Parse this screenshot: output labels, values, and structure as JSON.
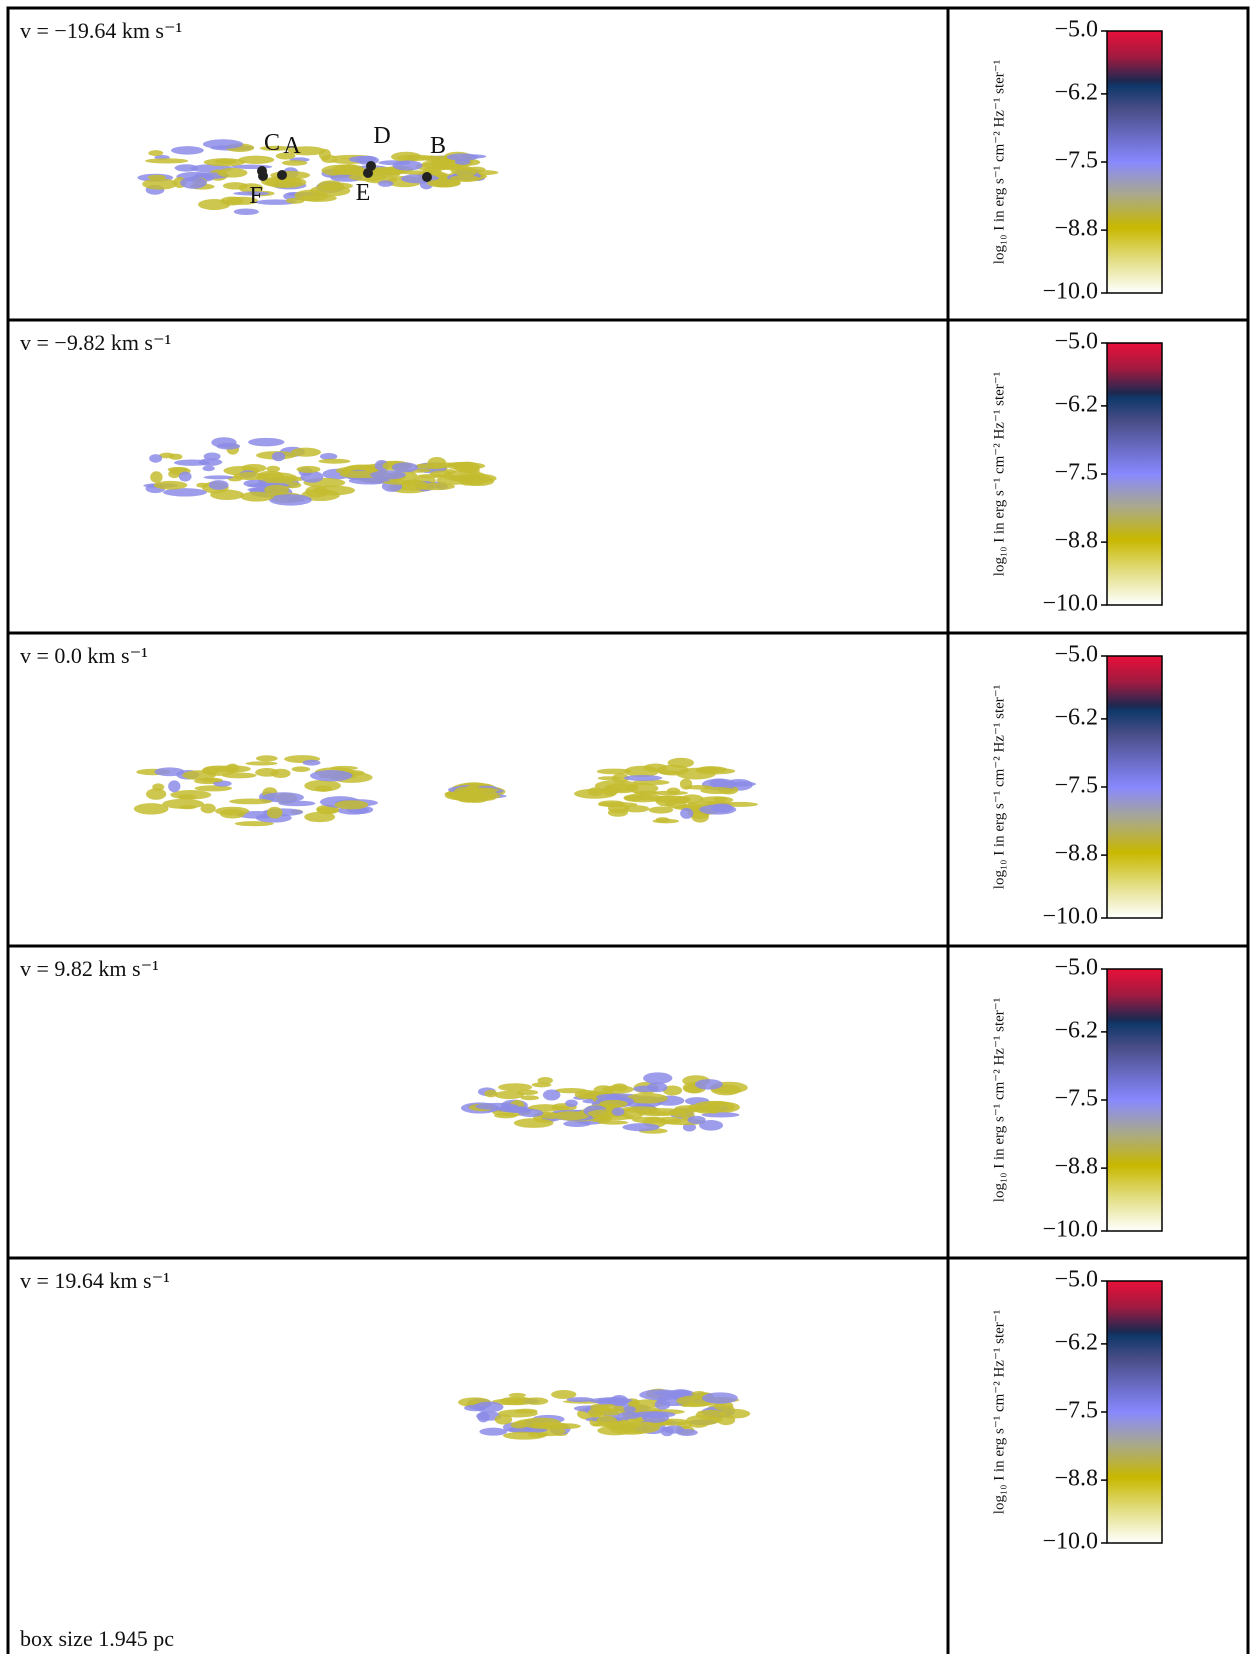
{
  "chart_data": [
    {
      "type": "image",
      "title": "v = −19.64 km s⁻¹",
      "annotations": [
        "C",
        "A",
        "D",
        "B",
        "F",
        "E"
      ],
      "colorbar": {
        "label": "log₁₀ I in erg s⁻¹ cm⁻² Hz⁻¹ ster⁻¹",
        "lim": [
          -10,
          -5
        ],
        "ticks": [
          {
            "value": -5,
            "label": "−5.0"
          },
          {
            "value": -6.2,
            "label": "−6.2"
          },
          {
            "value": -7.5,
            "label": "−7.5"
          },
          {
            "value": -8.8,
            "label": "−8.8"
          },
          {
            "value": -10,
            "label": "−10.0"
          }
        ]
      }
    },
    {
      "type": "image",
      "title": "v = −9.82 km s⁻¹",
      "colorbar": {
        "label": "log₁₀ I in erg s⁻¹ cm⁻² Hz⁻¹ ster⁻¹",
        "lim": [
          -10,
          -5
        ],
        "ticks": [
          {
            "value": -5,
            "label": "−5.0"
          },
          {
            "value": -6.2,
            "label": "−6.2"
          },
          {
            "value": -7.5,
            "label": "−7.5"
          },
          {
            "value": -8.8,
            "label": "−8.8"
          },
          {
            "value": -10,
            "label": "−10.0"
          }
        ]
      }
    },
    {
      "type": "image",
      "title": "v = 0.0 km s⁻¹",
      "colorbar": {
        "label": "log₁₀ I in erg s⁻¹ cm⁻² Hz⁻¹ ster⁻¹",
        "lim": [
          -10,
          -5
        ],
        "ticks": [
          {
            "value": -5,
            "label": "−5.0"
          },
          {
            "value": -6.2,
            "label": "−6.2"
          },
          {
            "value": -7.5,
            "label": "−7.5"
          },
          {
            "value": -8.8,
            "label": "−8.8"
          },
          {
            "value": -10,
            "label": "−10.0"
          }
        ]
      }
    },
    {
      "type": "image",
      "title": "v = 9.82 km s⁻¹",
      "colorbar": {
        "label": "log₁₀ I in erg s⁻¹ cm⁻² Hz⁻¹ ster⁻¹",
        "lim": [
          -10,
          -5
        ],
        "ticks": [
          {
            "value": -5,
            "label": "−5.0"
          },
          {
            "value": -6.2,
            "label": "−6.2"
          },
          {
            "value": -7.5,
            "label": "−7.5"
          },
          {
            "value": -8.8,
            "label": "−8.8"
          },
          {
            "value": -10,
            "label": "−10.0"
          }
        ]
      }
    },
    {
      "type": "image",
      "title": "v = 19.64 km s⁻¹",
      "note": "box size 1.945 pc",
      "colorbar": {
        "label": "log₁₀ I in erg s⁻¹ cm⁻² Hz⁻¹ ster⁻¹",
        "lim": [
          -10,
          -5
        ],
        "ticks": [
          {
            "value": -5,
            "label": "−5.0"
          },
          {
            "value": -6.2,
            "label": "−6.2"
          },
          {
            "value": -7.5,
            "label": "−7.5"
          },
          {
            "value": -8.8,
            "label": "−8.8"
          },
          {
            "value": -10,
            "label": "−10.0"
          }
        ]
      }
    }
  ]
}
